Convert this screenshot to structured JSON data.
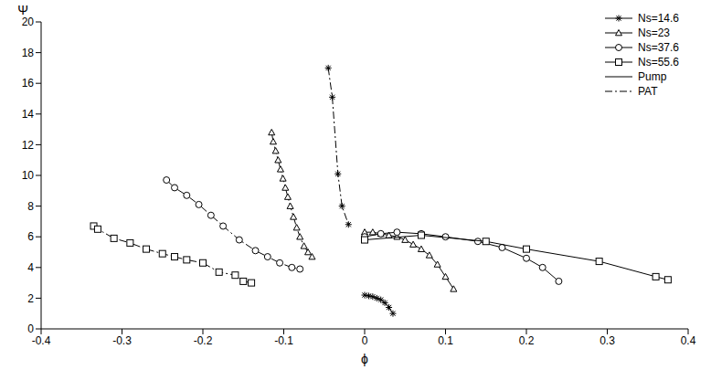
{
  "chart_data": {
    "type": "scatter",
    "x_label": "ϕ",
    "y_label": "Ψ",
    "xlim": [
      -0.4,
      0.4
    ],
    "xticks": [
      -0.4,
      -0.3,
      -0.2,
      -0.1,
      0,
      0.1,
      0.2,
      0.3,
      0.4
    ],
    "ylim": [
      0,
      20
    ],
    "yticks": [
      0,
      2,
      4,
      6,
      8,
      10,
      12,
      14,
      16,
      18,
      20
    ],
    "legend": "upper right",
    "series": [
      {
        "name": "Ns=14.6",
        "color": "#000000",
        "marker": "star",
        "branches": [
          {
            "name": "Pump",
            "line_style": "solid",
            "x": [
              0,
              0.005,
              0.01,
              0.015,
              0.02,
              0.025,
              0.03,
              0.035
            ],
            "values": [
              2.2,
              2.15,
              2.1,
              2.0,
              1.9,
              1.7,
              1.4,
              1.0
            ]
          },
          {
            "name": "PAT",
            "line_style": "dashdot",
            "x": [
              -0.045,
              -0.04,
              -0.033,
              -0.028,
              -0.02
            ],
            "values": [
              17.0,
              15.1,
              10.1,
              8.0,
              6.8
            ]
          }
        ]
      },
      {
        "name": "Ns=23",
        "color": "#000000",
        "marker": "triangle",
        "branches": [
          {
            "name": "Pump",
            "line_style": "solid",
            "x": [
              0,
              0.01,
              0.02,
              0.03,
              0.04,
              0.05,
              0.06,
              0.07,
              0.08,
              0.09,
              0.1,
              0.11
            ],
            "values": [
              6.3,
              6.3,
              6.2,
              6.1,
              6.0,
              5.8,
              5.5,
              5.2,
              4.8,
              4.2,
              3.4,
              2.6
            ]
          },
          {
            "name": "PAT",
            "line_style": "dashdot",
            "x": [
              -0.115,
              -0.113,
              -0.11,
              -0.107,
              -0.104,
              -0.101,
              -0.098,
              -0.095,
              -0.092,
              -0.088,
              -0.084,
              -0.08,
              -0.075,
              -0.07,
              -0.065
            ],
            "values": [
              12.8,
              12.2,
              11.6,
              11.0,
              10.4,
              9.8,
              9.2,
              8.6,
              8.0,
              7.3,
              6.6,
              6.0,
              5.4,
              5.0,
              4.7
            ]
          }
        ]
      },
      {
        "name": "Ns=37.6",
        "color": "#000000",
        "marker": "circle",
        "branches": [
          {
            "name": "Pump",
            "line_style": "solid",
            "x": [
              0,
              0.02,
              0.04,
              0.07,
              0.1,
              0.14,
              0.17,
              0.2,
              0.22,
              0.24
            ],
            "values": [
              6.0,
              6.2,
              6.3,
              6.2,
              6.0,
              5.7,
              5.3,
              4.6,
              4.0,
              3.1
            ]
          },
          {
            "name": "PAT",
            "line_style": "dashdot",
            "x": [
              -0.245,
              -0.235,
              -0.22,
              -0.205,
              -0.19,
              -0.175,
              -0.155,
              -0.135,
              -0.12,
              -0.105,
              -0.09,
              -0.08
            ],
            "values": [
              9.7,
              9.2,
              8.7,
              8.1,
              7.4,
              6.7,
              5.8,
              5.1,
              4.7,
              4.3,
              4.0,
              3.9
            ]
          }
        ]
      },
      {
        "name": "Ns=55.6",
        "color": "#000000",
        "marker": "square",
        "branches": [
          {
            "name": "Pump",
            "line_style": "solid",
            "x": [
              0,
              0.07,
              0.15,
              0.2,
              0.29,
              0.36,
              0.375
            ],
            "values": [
              5.8,
              6.1,
              5.7,
              5.2,
              4.4,
              3.4,
              3.2
            ]
          },
          {
            "name": "PAT",
            "line_style": "dashdot",
            "x": [
              -0.335,
              -0.33,
              -0.31,
              -0.29,
              -0.27,
              -0.25,
              -0.235,
              -0.22,
              -0.2,
              -0.18,
              -0.16,
              -0.15,
              -0.14
            ],
            "values": [
              6.7,
              6.5,
              5.9,
              5.6,
              5.2,
              4.9,
              4.7,
              4.5,
              4.3,
              3.7,
              3.5,
              3.1,
              3.0
            ]
          }
        ]
      }
    ]
  }
}
